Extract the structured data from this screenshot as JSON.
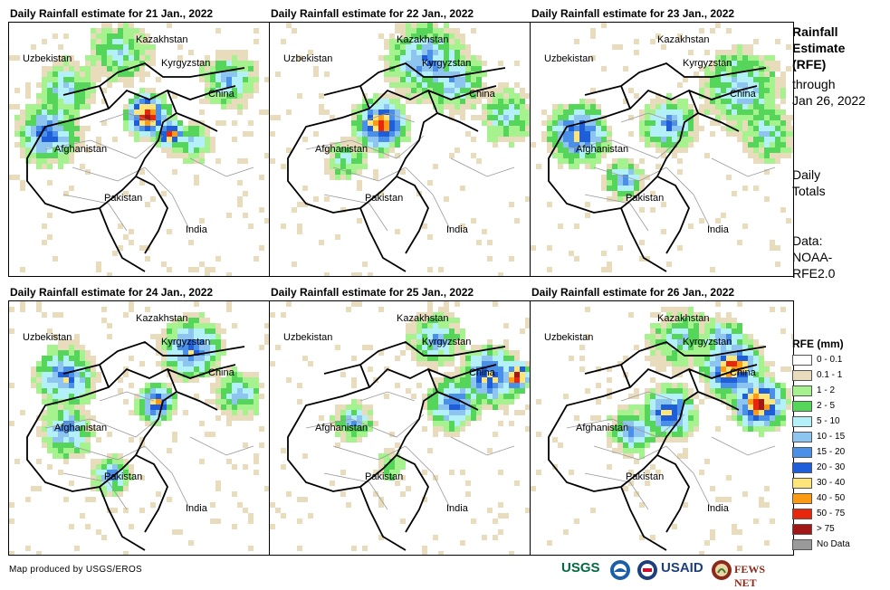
{
  "panels": [
    {
      "title": "Daily Rainfall estimate for 21 Jan., 2022"
    },
    {
      "title": "Daily Rainfall estimate for 22 Jan., 2022"
    },
    {
      "title": "Daily Rainfall estimate for 23 Jan., 2022"
    },
    {
      "title": "Daily Rainfall estimate for 24 Jan., 2022"
    },
    {
      "title": "Daily Rainfall estimate for 25 Jan., 2022"
    },
    {
      "title": "Daily Rainfall estimate for 26 Jan., 2022"
    }
  ],
  "map_labels": {
    "kazakhstan": "Kazakhstan",
    "uzbekistan": "Uzbekistan",
    "kyrgyzstan": "Kyrgyzstan",
    "china": "China",
    "afghanistan": "Afghanistan",
    "pakistan": "Pakistan",
    "india": "India"
  },
  "sidebar": {
    "title_lines": [
      "Rainfall",
      "Estimate",
      "(RFE)"
    ],
    "through_lines": [
      "through",
      "Jan 26, 2022"
    ],
    "totals_lines": [
      "Daily",
      "Totals"
    ],
    "data_lines": [
      "Data:",
      "NOAA-",
      "RFE2.0"
    ]
  },
  "legend": {
    "title": "RFE (mm)",
    "items": [
      {
        "label": "0 - 0.1",
        "color": "#ffffff"
      },
      {
        "label": "0.1 - 1",
        "color": "#e8dcbc"
      },
      {
        "label": "1 - 2",
        "color": "#a6f28f"
      },
      {
        "label": "2 - 5",
        "color": "#55d65a"
      },
      {
        "label": "5 - 10",
        "color": "#b3f0f7"
      },
      {
        "label": "10 - 15",
        "color": "#8ec4f0"
      },
      {
        "label": "15 - 20",
        "color": "#4a8fe8"
      },
      {
        "label": "20 - 30",
        "color": "#1e5fd9"
      },
      {
        "label": "30 - 40",
        "color": "#fde57a"
      },
      {
        "label": "40 - 50",
        "color": "#fb9a14"
      },
      {
        "label": "50 - 75",
        "color": "#e8260d"
      },
      {
        "label": "> 75",
        "color": "#a01818"
      },
      {
        "label": "No Data",
        "color": "#9a9a9a"
      }
    ]
  },
  "credit": "Map produced by USGS/EROS",
  "logos": [
    "USGS",
    "NOAA",
    "USAID",
    "FEWS NET"
  ]
}
